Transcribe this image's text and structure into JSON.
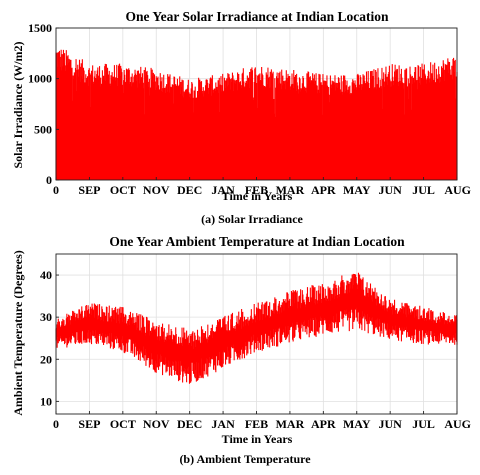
{
  "chart_data": [
    {
      "type": "area",
      "title": "One Year Solar Irradiance at Indian Location",
      "xlabel": "Time in Years",
      "ylabel": "Solar Irradiance (W/m2)",
      "caption": "(a) Solar Irradiance",
      "x_tick_labels": [
        "0",
        "SEP",
        "OCT",
        "NOV",
        "DEC",
        "JAN",
        "FEB",
        "MAR",
        "APR",
        "MAY",
        "JUN",
        "JUL",
        "AUG"
      ],
      "y_ticks": [
        0,
        500,
        1000,
        1500
      ],
      "ylim": [
        0,
        1500
      ],
      "grid": true,
      "color": "#ff0000",
      "series": [
        {
          "x": [
            "0",
            "SEP",
            "OCT",
            "NOV",
            "DEC",
            "JAN",
            "FEB",
            "MAR",
            "APR",
            "MAY",
            "JUN",
            "JUL",
            "AUG"
          ],
          "y_min": [
            0,
            0,
            0,
            0,
            0,
            0,
            0,
            0,
            0,
            0,
            0,
            0,
            0
          ],
          "y_max": [
            1350,
            1150,
            1150,
            1100,
            1000,
            1050,
            1150,
            1100,
            1050,
            1050,
            1150,
            1150,
            1250
          ]
        }
      ]
    },
    {
      "type": "line",
      "title": "One Year Ambient Temperature at Indian Location",
      "xlabel": "Time in Years",
      "ylabel": "Ambient Temperature (Degrees)",
      "caption": "(b) Ambient Temperature",
      "x_tick_labels": [
        "0",
        "SEP",
        "OCT",
        "NOV",
        "DEC",
        "JAN",
        "FEB",
        "MAR",
        "APR",
        "MAY",
        "JUN",
        "JUL",
        "AUG"
      ],
      "y_ticks": [
        10,
        20,
        30,
        40
      ],
      "ylim": [
        7,
        45
      ],
      "grid": true,
      "color": "#ff0000",
      "series": [
        {
          "x": [
            "0",
            "SEP",
            "OCT",
            "NOV",
            "DEC",
            "JAN",
            "FEB",
            "MAR",
            "APR",
            "MAY",
            "JUN",
            "JUL",
            "AUG"
          ],
          "y_min": [
            22,
            23,
            21,
            16,
            13,
            17,
            21,
            23,
            25,
            26,
            24,
            23,
            23
          ],
          "y_max": [
            30,
            34,
            33,
            30,
            28,
            31,
            34,
            37,
            39,
            42,
            35,
            33,
            31
          ]
        }
      ]
    }
  ]
}
